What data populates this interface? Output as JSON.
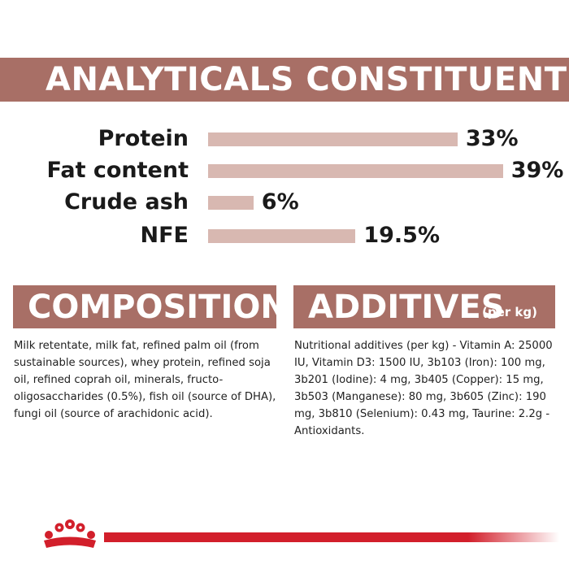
{
  "title": "ANALYTICALS CONSTITUENTS",
  "chart_data": {
    "type": "bar",
    "orientation": "horizontal",
    "categories": [
      "Protein",
      "Fat content",
      "Crude ash",
      "NFE"
    ],
    "values": [
      33,
      39,
      6,
      19.5
    ],
    "value_labels": [
      "33%",
      "39%",
      "6%",
      "19.5%"
    ],
    "unit": "%",
    "bar_color": "#d8b8b1",
    "grid": false
  },
  "composition": {
    "heading": "COMPOSITION",
    "text": "Milk retentate, milk fat, refined palm oil (from sustainable sources), whey protein, refined soja oil, refined coprah oil, minerals, fructo-oligosaccharides (0.5%), fish oil (source of DHA), fungi oil (source of arachidonic acid)."
  },
  "additives": {
    "heading": "ADDITIVES",
    "heading_suffix": "(per kg)",
    "text": "Nutritional additives (per kg) - Vitamin A: 25000 IU, Vitamin D3: 1500 IU, 3b103 (Iron): 100 mg, 3b201 (Iodine): 4 mg, 3b405 (Copper): 15 mg, 3b503 (Manganese): 80 mg, 3b605 (Zinc): 190 mg, 3b810 (Selenium): 0.43 mg, Taurine: 2.2g - Antioxidants."
  },
  "colors": {
    "banner": "#a86f66",
    "bar": "#d8b8b1",
    "brand_red": "#d21f2b"
  },
  "logo_icon": "royal-canin-crown-icon"
}
